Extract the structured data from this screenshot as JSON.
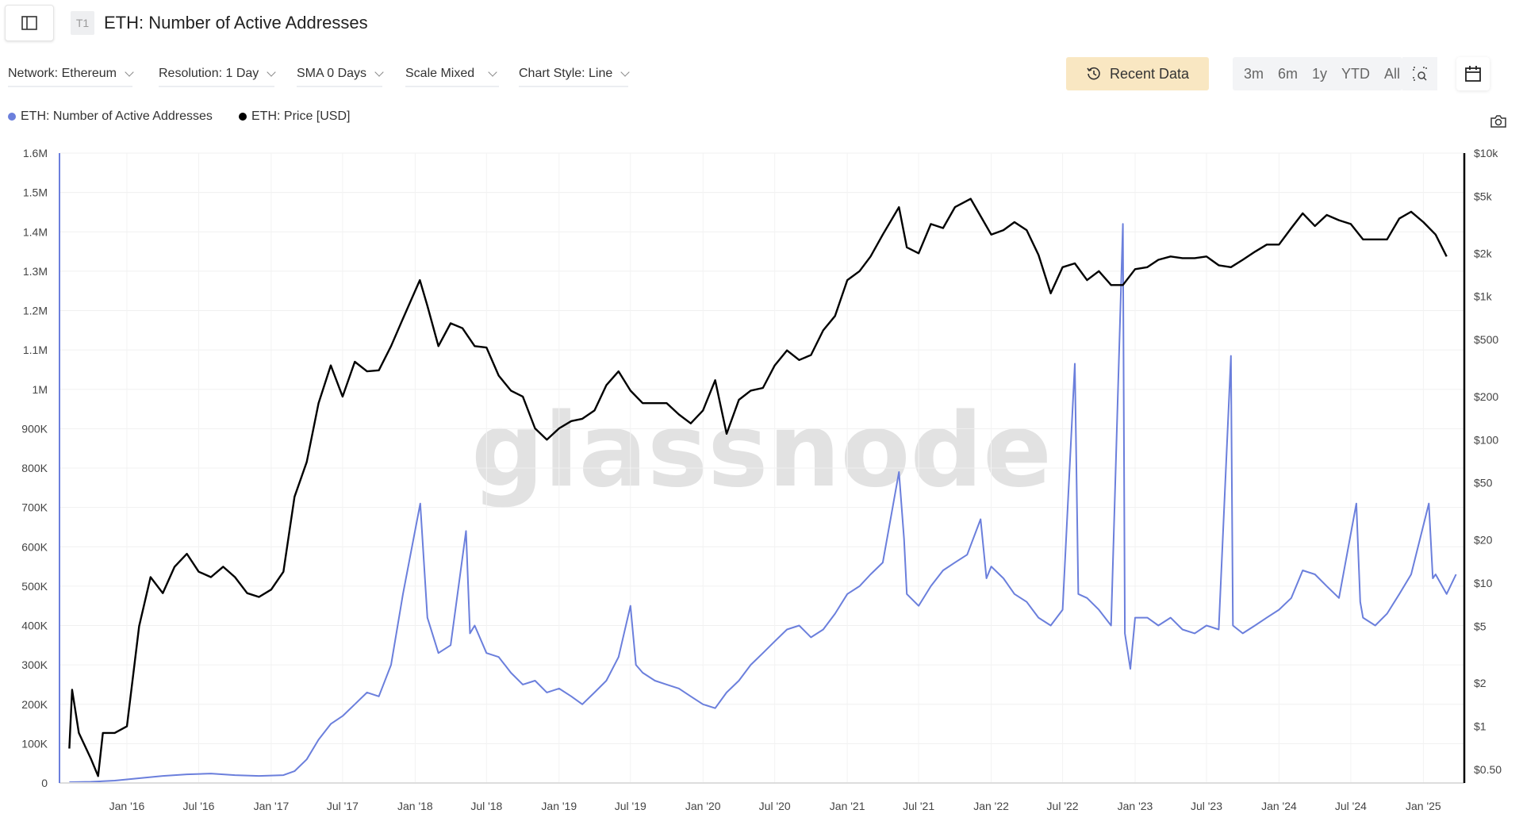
{
  "header": {
    "badge": "T1",
    "title": "ETH: Number of Active Addresses"
  },
  "filters": [
    {
      "label": "Network: Ethereum"
    },
    {
      "label": "Resolution: 1 Day"
    },
    {
      "label": "SMA 0 Days"
    },
    {
      "label": "Scale Mixed"
    },
    {
      "label": "Chart Style: Line"
    }
  ],
  "toolbar": {
    "recent_label": "Recent Data",
    "ranges": [
      "3m",
      "6m",
      "1y",
      "YTD",
      "All"
    ],
    "icons": [
      "history-icon",
      "zoom-select-icon",
      "calendar-icon",
      "camera-icon",
      "sidebar-toggle-icon"
    ]
  },
  "watermark": "glassnode",
  "chart_data": {
    "type": "line",
    "legend_placement": "top-left",
    "grid": true,
    "x_ticks": [
      "Jan '16",
      "Jul '16",
      "Jan '17",
      "Jul '17",
      "Jan '18",
      "Jul '18",
      "Jan '19",
      "Jul '19",
      "Jan '20",
      "Jul '20",
      "Jan '21",
      "Jul '21",
      "Jan '22",
      "Jul '22",
      "Jan '23",
      "Jul '23",
      "Jan '24",
      "Jul '24",
      "Jan '25"
    ],
    "x_tick_dates": [
      "2016-01",
      "2016-07",
      "2017-01",
      "2017-07",
      "2018-01",
      "2018-07",
      "2019-01",
      "2019-07",
      "2020-01",
      "2020-07",
      "2021-01",
      "2021-07",
      "2022-01",
      "2022-07",
      "2023-01",
      "2023-07",
      "2024-01",
      "2024-07",
      "2025-01"
    ],
    "y_left": {
      "scale": "linear",
      "range": [
        0,
        1600000
      ],
      "ticks": [
        "0",
        "100K",
        "200K",
        "300K",
        "400K",
        "500K",
        "600K",
        "700K",
        "800K",
        "900K",
        "1M",
        "1.1M",
        "1.2M",
        "1.3M",
        "1.4M",
        "1.5M",
        "1.6M"
      ]
    },
    "y_right": {
      "scale": "log",
      "range": [
        0.5,
        10000
      ],
      "tick_values": [
        10000,
        5000,
        2000,
        1000,
        500,
        200,
        100,
        50,
        20,
        10,
        5,
        2,
        1,
        0.5
      ],
      "ticks": [
        "$10k",
        "$5k",
        "$2k",
        "$1k",
        "$500",
        "$200",
        "$100",
        "$50",
        "$20",
        "$10",
        "$5",
        "$2",
        "$1",
        "$0.50"
      ]
    },
    "series": [
      {
        "name": "ETH: Number of Active Addresses",
        "color": "#6b7fdc",
        "axis": "left",
        "points": [
          [
            "2015-08-08",
            2000
          ],
          [
            "2015-10",
            3000
          ],
          [
            "2015-12",
            6000
          ],
          [
            "2016-02",
            12000
          ],
          [
            "2016-04",
            18000
          ],
          [
            "2016-06",
            22000
          ],
          [
            "2016-08",
            24000
          ],
          [
            "2016-10",
            20000
          ],
          [
            "2016-12",
            18000
          ],
          [
            "2017-02",
            20000
          ],
          [
            "2017-03",
            30000
          ],
          [
            "2017-04",
            60000
          ],
          [
            "2017-05",
            110000
          ],
          [
            "2017-06",
            150000
          ],
          [
            "2017-07",
            170000
          ],
          [
            "2017-08",
            200000
          ],
          [
            "2017-09",
            230000
          ],
          [
            "2017-10",
            220000
          ],
          [
            "2017-11",
            300000
          ],
          [
            "2017-12",
            480000
          ],
          [
            "2018-01-14",
            710000
          ],
          [
            "2018-02",
            420000
          ],
          [
            "2018-03",
            330000
          ],
          [
            "2018-04",
            350000
          ],
          [
            "2018-05-10",
            640000
          ],
          [
            "2018-05-20",
            380000
          ],
          [
            "2018-06",
            400000
          ],
          [
            "2018-07",
            330000
          ],
          [
            "2018-08",
            320000
          ],
          [
            "2018-09",
            280000
          ],
          [
            "2018-10",
            250000
          ],
          [
            "2018-11",
            260000
          ],
          [
            "2018-12",
            230000
          ],
          [
            "2019-01",
            240000
          ],
          [
            "2019-02",
            220000
          ],
          [
            "2019-03",
            200000
          ],
          [
            "2019-04",
            230000
          ],
          [
            "2019-05",
            260000
          ],
          [
            "2019-06",
            320000
          ],
          [
            "2019-07-01",
            450000
          ],
          [
            "2019-07-15",
            300000
          ],
          [
            "2019-08",
            280000
          ],
          [
            "2019-09",
            260000
          ],
          [
            "2019-10",
            250000
          ],
          [
            "2019-11",
            240000
          ],
          [
            "2019-12",
            220000
          ],
          [
            "2020-01",
            200000
          ],
          [
            "2020-02",
            190000
          ],
          [
            "2020-03",
            230000
          ],
          [
            "2020-04",
            260000
          ],
          [
            "2020-05",
            300000
          ],
          [
            "2020-06",
            330000
          ],
          [
            "2020-07",
            360000
          ],
          [
            "2020-08",
            390000
          ],
          [
            "2020-09",
            400000
          ],
          [
            "2020-10",
            370000
          ],
          [
            "2020-11",
            390000
          ],
          [
            "2020-12",
            430000
          ],
          [
            "2021-01",
            480000
          ],
          [
            "2021-02",
            500000
          ],
          [
            "2021-03",
            530000
          ],
          [
            "2021-04",
            560000
          ],
          [
            "2021-05-12",
            790000
          ],
          [
            "2021-05-25",
            620000
          ],
          [
            "2021-06",
            480000
          ],
          [
            "2021-07",
            450000
          ],
          [
            "2021-08",
            500000
          ],
          [
            "2021-09",
            540000
          ],
          [
            "2021-10",
            560000
          ],
          [
            "2021-11",
            580000
          ],
          [
            "2021-12-05",
            670000
          ],
          [
            "2021-12-20",
            520000
          ],
          [
            "2022-01",
            550000
          ],
          [
            "2022-02",
            520000
          ],
          [
            "2022-03",
            480000
          ],
          [
            "2022-04",
            460000
          ],
          [
            "2022-05",
            420000
          ],
          [
            "2022-06",
            400000
          ],
          [
            "2022-07",
            440000
          ],
          [
            "2022-08-01",
            1065000
          ],
          [
            "2022-08-10",
            480000
          ],
          [
            "2022-09",
            470000
          ],
          [
            "2022-10",
            440000
          ],
          [
            "2022-11",
            400000
          ],
          [
            "2022-12-01",
            1420000
          ],
          [
            "2022-12-06",
            380000
          ],
          [
            "2022-12-20",
            290000
          ],
          [
            "2023-01",
            420000
          ],
          [
            "2023-02",
            420000
          ],
          [
            "2023-03",
            400000
          ],
          [
            "2023-04",
            420000
          ],
          [
            "2023-05",
            390000
          ],
          [
            "2023-06",
            380000
          ],
          [
            "2023-07",
            400000
          ],
          [
            "2023-08",
            390000
          ],
          [
            "2023-09-01",
            1085000
          ],
          [
            "2023-09-06",
            400000
          ],
          [
            "2023-10",
            380000
          ],
          [
            "2023-11",
            400000
          ],
          [
            "2023-12",
            420000
          ],
          [
            "2024-01",
            440000
          ],
          [
            "2024-02",
            470000
          ],
          [
            "2024-03",
            540000
          ],
          [
            "2024-04",
            530000
          ],
          [
            "2024-05",
            500000
          ],
          [
            "2024-06",
            470000
          ],
          [
            "2024-07-15",
            710000
          ],
          [
            "2024-07-25",
            460000
          ],
          [
            "2024-08",
            420000
          ],
          [
            "2024-09",
            400000
          ],
          [
            "2024-10",
            430000
          ],
          [
            "2024-11",
            480000
          ],
          [
            "2024-12",
            530000
          ],
          [
            "2025-01-15",
            710000
          ],
          [
            "2025-01-25",
            520000
          ],
          [
            "2025-02",
            530000
          ],
          [
            "2025-03",
            480000
          ],
          [
            "2025-03-25",
            530000
          ]
        ]
      },
      {
        "name": "ETH: Price [USD]",
        "color": "#000000",
        "axis": "right",
        "points": [
          [
            "2015-08-08",
            0.7
          ],
          [
            "2015-08-15",
            1.8
          ],
          [
            "2015-09",
            0.9
          ],
          [
            "2015-10",
            0.6
          ],
          [
            "2015-10-20",
            0.45
          ],
          [
            "2015-11",
            0.9
          ],
          [
            "2015-12",
            0.9
          ],
          [
            "2016-01",
            1.0
          ],
          [
            "2016-02",
            5
          ],
          [
            "2016-03",
            11
          ],
          [
            "2016-04",
            8.5
          ],
          [
            "2016-05",
            13
          ],
          [
            "2016-06",
            16
          ],
          [
            "2016-07",
            12
          ],
          [
            "2016-08",
            11
          ],
          [
            "2016-09",
            13
          ],
          [
            "2016-10",
            11
          ],
          [
            "2016-11",
            8.5
          ],
          [
            "2016-12",
            8
          ],
          [
            "2017-01",
            9
          ],
          [
            "2017-02",
            12
          ],
          [
            "2017-03",
            40
          ],
          [
            "2017-04",
            70
          ],
          [
            "2017-05",
            180
          ],
          [
            "2017-06",
            330
          ],
          [
            "2017-07",
            200
          ],
          [
            "2017-08",
            350
          ],
          [
            "2017-09",
            300
          ],
          [
            "2017-10",
            305
          ],
          [
            "2017-11",
            450
          ],
          [
            "2017-12",
            700
          ],
          [
            "2018-01-13",
            1300
          ],
          [
            "2018-02",
            860
          ],
          [
            "2018-03",
            450
          ],
          [
            "2018-04",
            650
          ],
          [
            "2018-05",
            600
          ],
          [
            "2018-06",
            450
          ],
          [
            "2018-07",
            440
          ],
          [
            "2018-08",
            280
          ],
          [
            "2018-09",
            220
          ],
          [
            "2018-10",
            200
          ],
          [
            "2018-11",
            120
          ],
          [
            "2018-12",
            100
          ],
          [
            "2019-01",
            120
          ],
          [
            "2019-02",
            135
          ],
          [
            "2019-03",
            140
          ],
          [
            "2019-04",
            160
          ],
          [
            "2019-05",
            240
          ],
          [
            "2019-06",
            300
          ],
          [
            "2019-07",
            220
          ],
          [
            "2019-08",
            180
          ],
          [
            "2019-09",
            180
          ],
          [
            "2019-10",
            180
          ],
          [
            "2019-11",
            150
          ],
          [
            "2019-12",
            130
          ],
          [
            "2020-01",
            160
          ],
          [
            "2020-02",
            260
          ],
          [
            "2020-03",
            110
          ],
          [
            "2020-04",
            190
          ],
          [
            "2020-05",
            220
          ],
          [
            "2020-06",
            230
          ],
          [
            "2020-07",
            330
          ],
          [
            "2020-08",
            420
          ],
          [
            "2020-09",
            360
          ],
          [
            "2020-10",
            390
          ],
          [
            "2020-11",
            580
          ],
          [
            "2020-12",
            730
          ],
          [
            "2021-01",
            1300
          ],
          [
            "2021-02",
            1500
          ],
          [
            "2021-03",
            1900
          ],
          [
            "2021-04",
            2700
          ],
          [
            "2021-05-12",
            4200
          ],
          [
            "2021-06",
            2200
          ],
          [
            "2021-07",
            2000
          ],
          [
            "2021-08",
            3200
          ],
          [
            "2021-09",
            3000
          ],
          [
            "2021-10",
            4200
          ],
          [
            "2021-11-10",
            4800
          ],
          [
            "2021-12",
            3800
          ],
          [
            "2022-01",
            2700
          ],
          [
            "2022-02",
            2900
          ],
          [
            "2022-03",
            3300
          ],
          [
            "2022-04",
            2900
          ],
          [
            "2022-05",
            1950
          ],
          [
            "2022-06",
            1050
          ],
          [
            "2022-07",
            1600
          ],
          [
            "2022-08",
            1700
          ],
          [
            "2022-09",
            1300
          ],
          [
            "2022-10",
            1500
          ],
          [
            "2022-11",
            1200
          ],
          [
            "2022-12",
            1200
          ],
          [
            "2023-01",
            1550
          ],
          [
            "2023-02",
            1600
          ],
          [
            "2023-03",
            1800
          ],
          [
            "2023-04",
            1900
          ],
          [
            "2023-05",
            1850
          ],
          [
            "2023-06",
            1850
          ],
          [
            "2023-07",
            1900
          ],
          [
            "2023-08",
            1650
          ],
          [
            "2023-09",
            1600
          ],
          [
            "2023-10",
            1800
          ],
          [
            "2023-11",
            2050
          ],
          [
            "2023-12",
            2300
          ],
          [
            "2024-01",
            2300
          ],
          [
            "2024-02",
            3000
          ],
          [
            "2024-03",
            3800
          ],
          [
            "2024-04",
            3100
          ],
          [
            "2024-05",
            3700
          ],
          [
            "2024-06",
            3400
          ],
          [
            "2024-07",
            3200
          ],
          [
            "2024-08",
            2500
          ],
          [
            "2024-09",
            2500
          ],
          [
            "2024-10",
            2500
          ],
          [
            "2024-11",
            3500
          ],
          [
            "2024-12",
            3900
          ],
          [
            "2025-01",
            3300
          ],
          [
            "2025-02",
            2700
          ],
          [
            "2025-03",
            1900
          ]
        ]
      }
    ]
  }
}
